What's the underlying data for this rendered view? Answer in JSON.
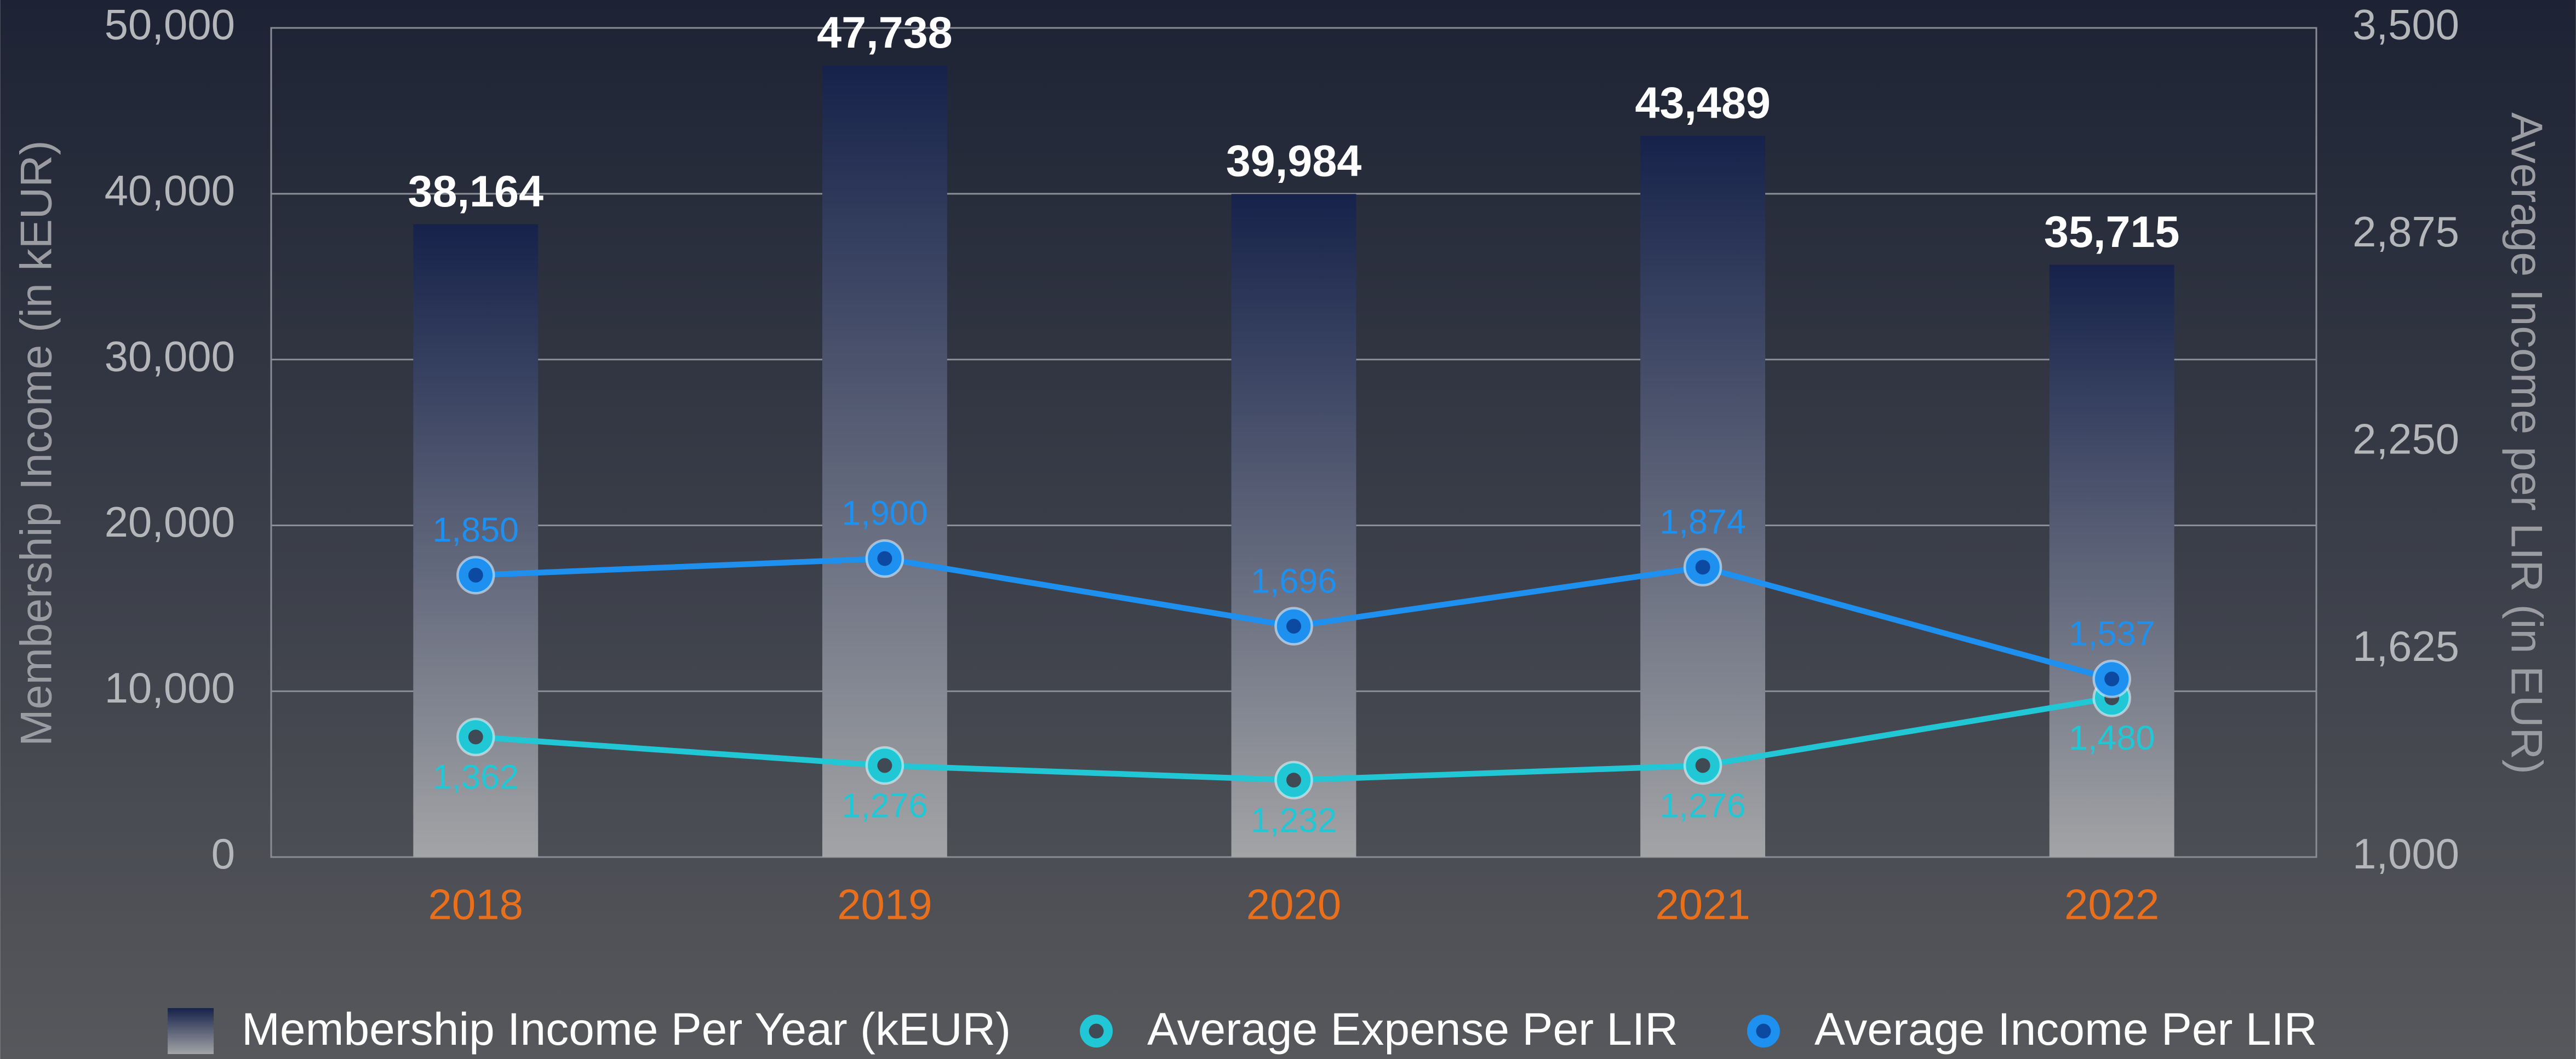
{
  "chart_data": {
    "type": "bar",
    "y_label": "Membership Income (in kEUR)",
    "y2_label": "Average Income per LIR (in EUR)",
    "categories": [
      "2018",
      "2019",
      "2020",
      "2021",
      "2022"
    ],
    "series": [
      {
        "name": "Membership Income Per Year (kEUR)",
        "type": "bar",
        "color": "#16224a",
        "values": [
          38164,
          47738,
          39984,
          43489,
          35715
        ],
        "value_labels": [
          "38,164",
          "47,738",
          "39,984",
          "43,489",
          "35,715"
        ]
      },
      {
        "name": "Average Expense Per LIR",
        "type": "line",
        "axis": "y2",
        "color": "#22c7d6",
        "values": [
          1362,
          1276,
          1232,
          1276,
          1480
        ],
        "value_labels": [
          "1,362",
          "1,276",
          "1,232",
          "1,276",
          "1,480"
        ]
      },
      {
        "name": "Average Income Per LIR",
        "type": "line",
        "axis": "y2",
        "color": "#1e90f0",
        "values": [
          1850,
          1900,
          1696,
          1874,
          1537
        ],
        "value_labels": [
          "1,850",
          "1,900",
          "1,696",
          "1,874",
          "1,537"
        ]
      }
    ],
    "ylim": [
      0,
      50000
    ],
    "yticks": [
      0,
      {
        "value": 10000,
        "label": "10,000"
      },
      {
        "value": 20000,
        "label": "20,000"
      },
      {
        "value": 30000,
        "label": "30,000"
      },
      {
        "value": 40000,
        "label": "40,000"
      },
      {
        "value": 50000,
        "label": "50,000"
      }
    ],
    "y2lim": [
      1000,
      3500
    ],
    "y2ticks": [
      {
        "value": 1000,
        "label": "1,000"
      },
      {
        "value": 1625,
        "label": "1,625"
      },
      {
        "value": 2250,
        "label": "2,250"
      },
      {
        "value": 2875,
        "label": "2,875"
      },
      {
        "value": 3500,
        "label": "3,500"
      }
    ],
    "grid": true
  }
}
